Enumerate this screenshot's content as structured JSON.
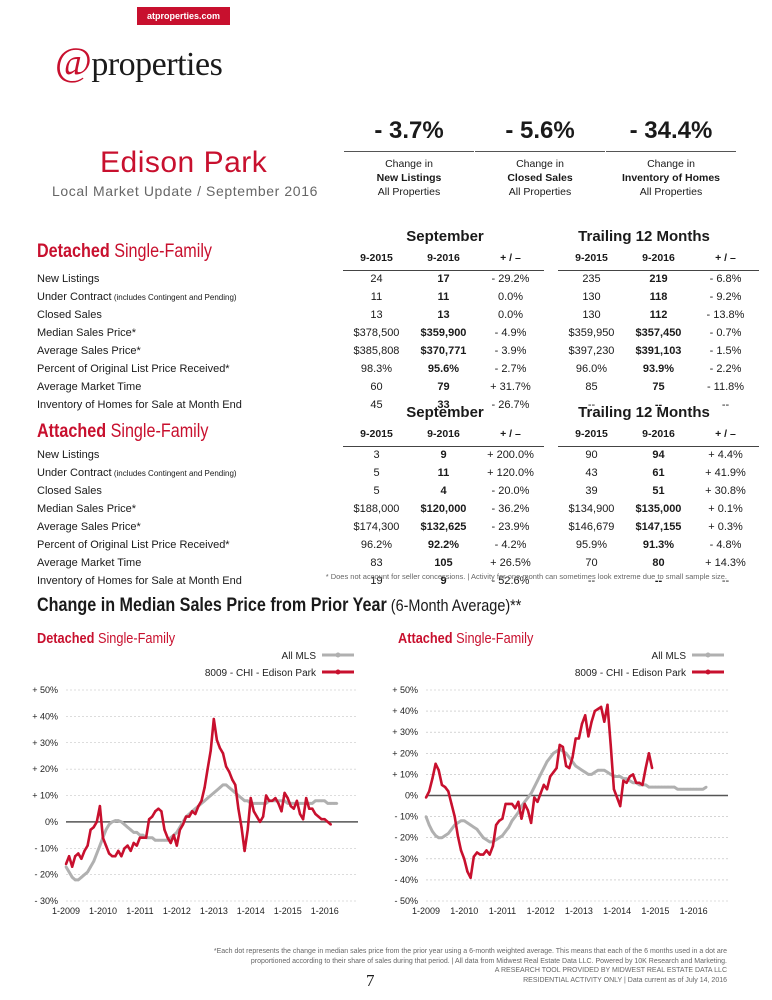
{
  "header": {
    "url": "atproperties.com",
    "logo_at": "@",
    "logo_text": "properties"
  },
  "city": "Edison Park",
  "subtitle": "Local Market Update / September 2016",
  "changes": [
    {
      "value": "- 3.7%",
      "line1": "Change in",
      "line2": "New Listings",
      "line3": "All Properties"
    },
    {
      "value": "- 5.6%",
      "line1": "Change in",
      "line2": "Closed Sales",
      "line3": "All Properties"
    },
    {
      "value": "- 34.4%",
      "line1": "Change in",
      "line2": "Inventory of Homes",
      "line3": "All Properties"
    }
  ],
  "period_headers": {
    "month": "September",
    "trailing": "Trailing 12 Months"
  },
  "col_headers": [
    "9-2015",
    "9-2016",
    "+ / –",
    "9-2015",
    "9-2016",
    "+ / –"
  ],
  "detached": {
    "title_bold": "Detached",
    "title_rest": " Single-Family",
    "rows": [
      {
        "label": "New Listings",
        "small": "",
        "v": [
          "24",
          "17",
          "- 29.2%",
          "235",
          "219",
          "- 6.8%"
        ]
      },
      {
        "label": "Under Contract",
        "small": " (includes Contingent and Pending)",
        "v": [
          "11",
          "11",
          "0.0%",
          "130",
          "118",
          "- 9.2%"
        ]
      },
      {
        "label": "Closed Sales",
        "small": "",
        "v": [
          "13",
          "13",
          "0.0%",
          "130",
          "112",
          "- 13.8%"
        ]
      },
      {
        "label": "Median Sales Price*",
        "small": "",
        "v": [
          "$378,500",
          "$359,900",
          "- 4.9%",
          "$359,950",
          "$357,450",
          "- 0.7%"
        ]
      },
      {
        "label": "Average Sales Price*",
        "small": "",
        "v": [
          "$385,808",
          "$370,771",
          "- 3.9%",
          "$397,230",
          "$391,103",
          "- 1.5%"
        ]
      },
      {
        "label": "Percent of Original List Price Received*",
        "small": "",
        "v": [
          "98.3%",
          "95.6%",
          "- 2.7%",
          "96.0%",
          "93.9%",
          "- 2.2%"
        ]
      },
      {
        "label": "Average Market Time",
        "small": "",
        "v": [
          "60",
          "79",
          "+ 31.7%",
          "85",
          "75",
          "- 11.8%"
        ]
      },
      {
        "label": "Inventory of Homes for Sale at Month End",
        "small": "",
        "v": [
          "45",
          "33",
          "- 26.7%",
          "--",
          "--",
          "--"
        ]
      }
    ]
  },
  "attached": {
    "title_bold": "Attached",
    "title_rest": " Single-Family",
    "rows": [
      {
        "label": "New Listings",
        "small": "",
        "v": [
          "3",
          "9",
          "+ 200.0%",
          "90",
          "94",
          "+ 4.4%"
        ]
      },
      {
        "label": "Under Contract",
        "small": " (includes Contingent and Pending)",
        "v": [
          "5",
          "11",
          "+ 120.0%",
          "43",
          "61",
          "+ 41.9%"
        ]
      },
      {
        "label": "Closed Sales",
        "small": "",
        "v": [
          "5",
          "4",
          "- 20.0%",
          "39",
          "51",
          "+ 30.8%"
        ]
      },
      {
        "label": "Median Sales Price*",
        "small": "",
        "v": [
          "$188,000",
          "$120,000",
          "- 36.2%",
          "$134,900",
          "$135,000",
          "+ 0.1%"
        ]
      },
      {
        "label": "Average Sales Price*",
        "small": "",
        "v": [
          "$174,300",
          "$132,625",
          "- 23.9%",
          "$146,679",
          "$147,155",
          "+ 0.3%"
        ]
      },
      {
        "label": "Percent of Original List Price Received*",
        "small": "",
        "v": [
          "96.2%",
          "92.2%",
          "- 4.2%",
          "95.9%",
          "91.3%",
          "- 4.8%"
        ]
      },
      {
        "label": "Average Market Time",
        "small": "",
        "v": [
          "83",
          "105",
          "+ 26.5%",
          "70",
          "80",
          "+ 14.3%"
        ]
      },
      {
        "label": "Inventory of Homes for Sale at Month End",
        "small": "",
        "v": [
          "19",
          "9",
          "- 52.6%",
          "--",
          "--",
          "--"
        ]
      }
    ]
  },
  "table_note": "* Does not account for seller concessions.  |  Activity for one month can sometimes look extreme due to small sample size.",
  "chart_section": {
    "title": "Change in Median Sales Price from Prior Year",
    "title_rest": " (6-Month Average)**"
  },
  "colors": {
    "accent": "#c8102e",
    "all_mls": "#b0b0b0"
  },
  "chart_data": [
    {
      "type": "line",
      "title_bold": "Detached",
      "title_rest": " Single-Family",
      "legend": [
        "All MLS",
        "8009 - CHI - Edison Park"
      ],
      "ylim": [
        -30,
        50
      ],
      "yticks": [
        "+ 50%",
        "+ 40%",
        "+ 30%",
        "+ 20%",
        "+ 10%",
        "0%",
        "- 10%",
        "- 20%",
        "- 30%"
      ],
      "xticks": [
        "1-2009",
        "1-2010",
        "1-2011",
        "1-2012",
        "1-2013",
        "1-2014",
        "1-2015",
        "1-2016"
      ],
      "series": [
        {
          "name": "All MLS",
          "x_start": 2009.0,
          "step": 0.0833,
          "values": [
            -17,
            -19,
            -21,
            -22,
            -22,
            -21,
            -20,
            -19,
            -17,
            -15,
            -12,
            -9,
            -6,
            -3,
            -1,
            0,
            0.5,
            0.5,
            0,
            -1,
            -2,
            -3,
            -4,
            -4,
            -5,
            -5,
            -6,
            -6,
            -6,
            -7,
            -7,
            -7,
            -7,
            -7,
            -6,
            -5,
            -4,
            -2,
            0,
            2,
            3,
            4,
            5,
            6,
            7,
            8,
            9,
            10,
            11,
            12,
            13,
            14,
            14,
            13,
            12,
            11,
            10,
            9,
            8,
            8,
            7,
            7,
            7,
            7,
            7,
            7,
            8,
            8,
            8,
            8,
            8,
            8,
            7,
            7,
            7,
            7,
            7,
            7,
            7,
            7,
            7,
            8,
            8,
            8,
            8,
            7,
            7,
            7,
            7
          ]
        },
        {
          "name": "8009 - CHI - Edison Park",
          "x_start": 2009.0,
          "step": 0.0833,
          "values": [
            -16,
            -13,
            -17,
            -13,
            -12,
            -14,
            -11,
            -9,
            -3,
            -2,
            0,
            6,
            -6,
            -9,
            -12,
            -13,
            -13,
            -11,
            -13,
            -10,
            -9,
            -11,
            -8,
            -9,
            -6,
            -6,
            -6,
            1,
            2,
            4,
            5,
            4,
            -3,
            -6,
            -8,
            -5,
            -9,
            -3,
            -1,
            2,
            2,
            4,
            3,
            6,
            8,
            13,
            20,
            27,
            39,
            31,
            28,
            26,
            21,
            19,
            16,
            14,
            5,
            -2,
            -11,
            -3,
            9,
            4,
            2,
            0,
            2,
            10,
            8,
            8,
            9,
            7,
            4,
            11,
            9,
            6,
            5,
            8,
            3,
            1,
            9,
            5,
            5,
            3,
            2,
            1,
            1,
            0,
            -1
          ]
        }
      ]
    },
    {
      "type": "line",
      "title_bold": "Attached",
      "title_rest": " Single-Family",
      "legend": [
        "All MLS",
        "8009 - CHI - Edison Park"
      ],
      "ylim": [
        -50,
        50
      ],
      "yticks": [
        "+ 50%",
        "+ 40%",
        "+ 30%",
        "+ 20%",
        "+ 10%",
        "0%",
        "- 10%",
        "- 20%",
        "- 30%",
        "- 40%",
        "- 50%"
      ],
      "xticks": [
        "1-2009",
        "1-2010",
        "1-2011",
        "1-2012",
        "1-2013",
        "1-2014",
        "1-2015",
        "1-2016"
      ],
      "series": [
        {
          "name": "All MLS",
          "x_start": 2009.0,
          "step": 0.0833,
          "values": [
            -10,
            -14,
            -17,
            -19,
            -20,
            -20,
            -19,
            -18,
            -16,
            -14,
            -13,
            -12,
            -12,
            -13,
            -14,
            -15,
            -16,
            -18,
            -20,
            -21,
            -22,
            -22,
            -21,
            -20,
            -19,
            -17,
            -15,
            -12,
            -10,
            -8,
            -5,
            -3,
            -1,
            1,
            4,
            7,
            10,
            13,
            16,
            18,
            20,
            21,
            22,
            21,
            20,
            18,
            16,
            14,
            13,
            12,
            11,
            10,
            10,
            11,
            12,
            12,
            12,
            11,
            10,
            9,
            9,
            9,
            8,
            8,
            7,
            6,
            6,
            5,
            5,
            5,
            4,
            4,
            4,
            4,
            4,
            4,
            4,
            4,
            4,
            3,
            3,
            3,
            3,
            3,
            3,
            3,
            3,
            3,
            4
          ]
        },
        {
          "name": "8009 - CHI - Edison Park",
          "x_start": 2009.0,
          "step": 0.0833,
          "values": [
            -1,
            2,
            8,
            15,
            12,
            5,
            4,
            2,
            -4,
            -10,
            -19,
            -26,
            -30,
            -36,
            -39,
            -29,
            -27,
            -28,
            -28,
            -26,
            -28,
            -24,
            -14,
            -12,
            -11,
            -4,
            -4,
            -4,
            -6,
            -3,
            -11,
            -4,
            -7,
            -13,
            -1,
            -3,
            1,
            5,
            3,
            9,
            11,
            13,
            24,
            23,
            14,
            13,
            18,
            27,
            27,
            34,
            38,
            28,
            35,
            40,
            41,
            42,
            35,
            43,
            24,
            3,
            -1,
            -5,
            7,
            6,
            9,
            10,
            6,
            6,
            5,
            13,
            20,
            13
          ]
        }
      ]
    }
  ],
  "footer": {
    "line1": "*Each dot represents the change in median sales price from the prior year using a 6-month weighted average. This means that each of the 6 months used in a dot are",
    "line2": "proportioned according to their share of sales during that period.  |  All data from Midwest Real Estate Data LLC. Powered by 10K Research and Marketing.",
    "line3": "A RESEARCH TOOL PROVIDED BY MIDWEST REAL ESTATE DATA LLC",
    "line4": "RESIDENTIAL ACTIVITY ONLY  |  Data current as of July 14, 2016"
  },
  "page_number": "7"
}
